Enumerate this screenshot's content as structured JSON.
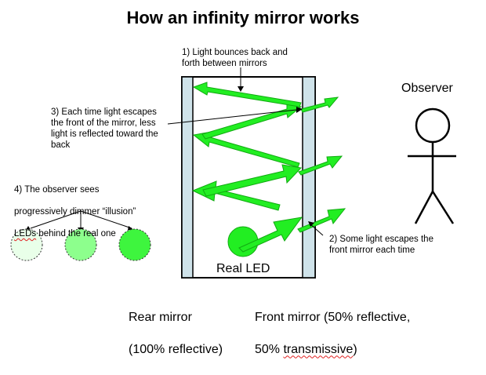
{
  "title": "How an infinity mirror works",
  "notes": {
    "n1": "1) Light bounces back and\nforth between mirrors",
    "n2": "2) Some light escapes the\nfront mirror each time",
    "n3": "3) Each time light escapes\nthe front of the mirror, less\nlight is reflected toward the\nback",
    "n4_line1": "4) The observer sees",
    "n4_line2": "progressively dimmer “illusion”",
    "n4_led_word": "LEDs",
    "n4_line3_rest": " behind the real one"
  },
  "labels": {
    "observer": "Observer",
    "real_led": "Real LED",
    "rear_mirror_line1": "Rear mirror",
    "rear_mirror_line2": "(100% reflective)",
    "front_mirror_line1": "Front mirror (50% reflective,",
    "front_mirror_line2_a": "50% ",
    "front_mirror_line2_b": "transmissive",
    "front_mirror_line2_c": ")"
  },
  "colors": {
    "light": "#22ee22",
    "light_stroke": "#11aa11",
    "mirror": "#cfe3ea",
    "illusion_1": "#e9ffe9",
    "illusion_2": "#8dff8d",
    "illusion_3": "#3ef53e"
  }
}
